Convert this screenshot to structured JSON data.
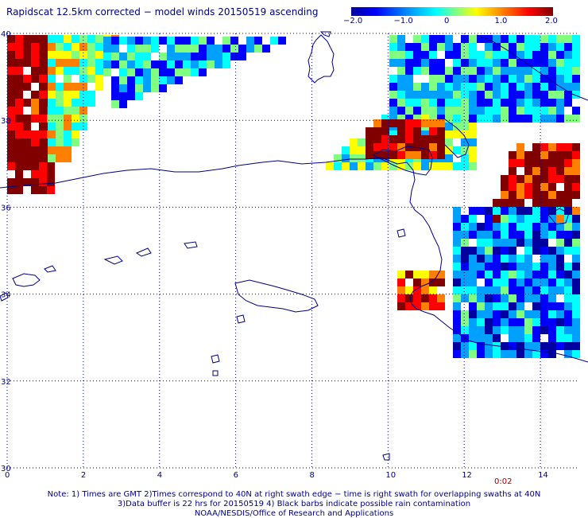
{
  "title": "Rapidscat 12.5km corrected − model winds 20150519 ascending",
  "colorbar": {
    "labels": [
      "−2.0",
      "−1.0",
      "0",
      "1.0",
      "2.0"
    ],
    "values": [
      -2.0,
      -1.0,
      0,
      1.0,
      2.0
    ],
    "colors": [
      "#0000a0",
      "#0000ff",
      "#00a0ff",
      "#00ffff",
      "#80ff80",
      "#ffff00",
      "#ff8000",
      "#ff0000",
      "#800000"
    ]
  },
  "map": {
    "lon_range": [
      0,
      15
    ],
    "lat_range": [
      30,
      40
    ],
    "x_ticks": [
      "0",
      "2",
      "4",
      "6",
      "8",
      "10",
      "12",
      "14"
    ],
    "y_ticks": [
      "40",
      "38",
      "36",
      "34",
      "32",
      "30"
    ],
    "grid": "dotted",
    "coast_color": "#000080"
  },
  "time_label": "0:02",
  "notes": [
    "Note: 1) Times are GMT 2)Times correspond to 40N at right swath edge − time is right swath for overlapping swaths at 40N",
    "3)Data buffer is 22 hrs for 20150519 4) Black barbs indicate possible rain contamination",
    "NOAA/NESDIS/Office of Research and Applications"
  ]
}
